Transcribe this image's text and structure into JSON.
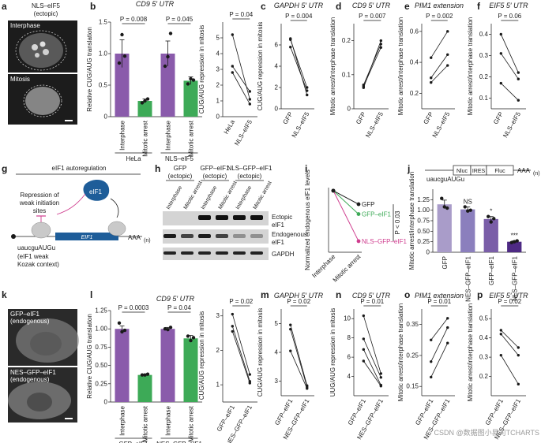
{
  "panels": {
    "a": {
      "label": "a",
      "title": "NLS–eIF5",
      "subtitle": "(ectopic)",
      "image_labels": [
        "Interphase",
        "Mitosis"
      ]
    },
    "g": {
      "label": "g",
      "title": "eIF1 autoregulation",
      "repression_text": [
        "Repression of",
        "weak initiation",
        "sites"
      ],
      "protein": "eIF1",
      "gene": "EIF1",
      "polya": "AAA",
      "polya_sub": "(n)",
      "kozak_seq": "uaucguAUGu",
      "kozak_note": [
        "(eIF1 weak",
        "Kozak context)"
      ]
    },
    "h": {
      "label": "h",
      "groups": [
        {
          "name": [
            "GFP",
            "(ectopic)"
          ]
        },
        {
          "name": [
            "GFP–eIF1",
            "(ectopic)"
          ]
        },
        {
          "name": [
            "NLS–GFP–eIF1",
            "(ectopic)"
          ]
        }
      ],
      "lane_labels": [
        "Interphase",
        "Mitotic arrest",
        "Interphase",
        "Mitotic arrest",
        "Interphase",
        "Mitotic arrest"
      ],
      "blot_labels": [
        [
          "Ectopic",
          "eIF1"
        ],
        [
          "Endogenous",
          "eIF1"
        ],
        [
          "GAPDH"
        ]
      ]
    },
    "k": {
      "label": "k",
      "image_labels": [
        [
          "GFP–eIF1",
          "(endogenous)"
        ],
        [
          "NES–GFP–eIF1",
          "(endogenous)"
        ]
      ]
    },
    "j_construct": {
      "parts": [
        "Nluc",
        "IRES",
        "Fluc"
      ],
      "polya": "AAA",
      "polya_sub": "(n)",
      "seq": "uaucguAUGu"
    },
    "watermark": "CSDN @数据图小易司TCHARTS"
  },
  "chart_data": [
    {
      "panel": "b",
      "type": "bar",
      "title": "CD9 5′ UTR",
      "ylabel": "Relative CUG/AUG translation",
      "ylim": [
        0,
        1.5
      ],
      "yticks": [
        "0",
        "0.5",
        "1.0",
        "1.5"
      ],
      "categories": [
        "Interphase",
        "Mitotic arrest",
        "Interphase",
        "Mitotic arrest"
      ],
      "groups": [
        "HeLa",
        "NLS–eIF5"
      ],
      "values": [
        1.0,
        0.25,
        1.0,
        0.57
      ],
      "errors": [
        0.22,
        0.03,
        0.2,
        0.06
      ],
      "points": [
        [
          0.85,
          1.3,
          0.96
        ],
        [
          0.22,
          0.25,
          0.28
        ],
        [
          0.8,
          0.95,
          1.32
        ],
        [
          0.52,
          0.6,
          0.58
        ]
      ],
      "colors": [
        "#8a5bab",
        "#3daa57",
        "#8a5bab",
        "#3daa57"
      ],
      "pvalues": [
        "P = 0.008",
        "P = 0.045"
      ]
    },
    {
      "panel": "b2",
      "type": "line",
      "ylabel": "CUG/AUG repression in mitosis",
      "ylim": [
        0,
        6
      ],
      "yticks": [
        "0",
        "1",
        "2",
        "3",
        "4",
        "5"
      ],
      "categories": [
        "HeLa",
        "NLS–eIF5"
      ],
      "series": [
        [
          5.2,
          1.1
        ],
        [
          3.2,
          1.6
        ],
        [
          2.8,
          0.8
        ]
      ],
      "pvalue": "P = 0.04"
    },
    {
      "panel": "c",
      "type": "line",
      "title": "GAPDH 5′ UTR",
      "ylabel": "CUG/AUG repression in mitosis",
      "ylim": [
        0,
        8
      ],
      "yticks": [
        "0",
        "2",
        "4",
        "6"
      ],
      "categories": [
        "GFP",
        "NLS–eIF5"
      ],
      "series": [
        [
          6.6,
          1.3
        ],
        [
          5.8,
          1.7
        ],
        [
          6.5,
          2.0
        ]
      ],
      "pvalue": "P = 0.004"
    },
    {
      "panel": "d",
      "type": "line",
      "title": "CD9 5′ UTR",
      "ylabel": "Mitotic arrest/interphase translation",
      "ylim": [
        0,
        0.25
      ],
      "yticks": [
        "0",
        "0.1",
        "0.2"
      ],
      "categories": [
        "GFP",
        "NLS–eIF5"
      ],
      "series": [
        [
          0.062,
          0.2
        ],
        [
          0.066,
          0.18
        ],
        [
          0.07,
          0.19
        ]
      ],
      "pvalue": "P = 0.007"
    },
    {
      "panel": "e",
      "type": "line",
      "title": "PIM1 extension",
      "ylabel": "Mitotic arrest/interphase translation",
      "ylim": [
        0.1,
        0.65
      ],
      "yticks": [
        "0.2",
        "0.4",
        "0.6"
      ],
      "categories": [
        "GFP",
        "NLS–eIF5"
      ],
      "series": [
        [
          0.43,
          0.6
        ],
        [
          0.3,
          0.45
        ],
        [
          0.27,
          0.38
        ]
      ],
      "pvalue": "P = 0.002"
    },
    {
      "panel": "f",
      "type": "line",
      "title": "EIF5 5′ UTR",
      "ylabel": "Mitotic arrest/interphase translation",
      "ylim": [
        0.05,
        0.45
      ],
      "yticks": [
        "0.1",
        "0.2",
        "0.3",
        "0.4"
      ],
      "categories": [
        "GFP",
        "NLS–eIF5"
      ],
      "series": [
        [
          0.4,
          0.22
        ],
        [
          0.31,
          0.19
        ],
        [
          0.17,
          0.09
        ]
      ],
      "pvalue": "P = 0.06"
    },
    {
      "panel": "i",
      "type": "line",
      "ylabel": "Normalized endogenous eIF1 levels",
      "ylim": [
        0,
        1.05
      ],
      "categories": [
        "Interphase",
        "Mitotic arrest"
      ],
      "series": [
        {
          "name": "GFP",
          "values": [
            1.0,
            0.78
          ],
          "color": "#1a1a1a"
        },
        {
          "name": "GFP–eIF1",
          "values": [
            1.0,
            0.62
          ],
          "color": "#3daa57"
        },
        {
          "name": "NLS–GFP–eIF1",
          "values": [
            1.0,
            0.18
          ],
          "color": "#cf3c8e"
        }
      ],
      "pvalue": "P < 0.03"
    },
    {
      "panel": "j",
      "type": "bar",
      "ylabel": "Mitotic arrest/interphase translation",
      "ylim": [
        0,
        1.5
      ],
      "yticks": [
        "0",
        "0.25",
        "0.50",
        "0.75",
        "1.00",
        "1.25"
      ],
      "categories": [
        "GFP",
        "NES–GFP–eIF1",
        "GFP–eIF1",
        "NLS–GFP–eIF1"
      ],
      "values": [
        1.14,
        1.02,
        0.79,
        0.25
      ],
      "errors": [
        0.1,
        0.06,
        0.06,
        0.02
      ],
      "points": [
        [
          1.28,
          1.08,
          1.05
        ],
        [
          1.08,
          0.98,
          1.0
        ],
        [
          0.85,
          0.72,
          0.8
        ],
        [
          0.23,
          0.25,
          0.27
        ]
      ],
      "colors": [
        "#a99cc9",
        "#8b7fbd",
        "#7a5ea8",
        "#4e2a84"
      ],
      "annotations": [
        "",
        "NS",
        "*",
        "***"
      ]
    },
    {
      "panel": "l",
      "type": "bar",
      "title": "CD9 5′ UTR",
      "ylabel": "Relative CUG/AUG translation",
      "ylim": [
        0,
        1.25
      ],
      "yticks": [
        "0",
        "0.25",
        "0.50",
        "0.75",
        "1.00",
        "1.25"
      ],
      "categories": [
        "Interphase",
        "Mitotic arrest",
        "Interphase",
        "Mitotic arrest"
      ],
      "groups": [
        "GFP–eIF1",
        "NES–GFP–eIF1"
      ],
      "values": [
        1.0,
        0.37,
        1.0,
        0.87
      ],
      "errors": [
        0.04,
        0.01,
        0.02,
        0.04
      ],
      "points": [
        [
          1.08,
          0.96,
          0.98
        ],
        [
          0.37,
          0.37,
          0.38
        ],
        [
          1.0,
          0.99,
          1.02
        ],
        [
          0.9,
          0.84,
          0.88
        ]
      ],
      "colors": [
        "#8a5bab",
        "#3daa57",
        "#8a5bab",
        "#3daa57"
      ],
      "pvalues": [
        "P = 0.0003",
        "P = 0.04"
      ]
    },
    {
      "panel": "l2",
      "type": "line",
      "ylabel": "CUG/AUG repression in mitosis",
      "ylim": [
        0.5,
        3.2
      ],
      "yticks": [
        "1",
        "2",
        "3"
      ],
      "categories": [
        "GFP–eIF1",
        "NES–GFP–eIF1"
      ],
      "series": [
        [
          3.05,
          1.3
        ],
        [
          2.7,
          1.1
        ],
        [
          2.55,
          1.05
        ]
      ],
      "pvalue": "P = 0.02"
    },
    {
      "panel": "m",
      "type": "line",
      "title": "GAPDH 5′ UTR",
      "ylabel": "CUG/AUG repression in mitosis",
      "ylim": [
        2.5,
        5.5
      ],
      "yticks": [
        "3",
        "4",
        "5"
      ],
      "categories": [
        "GFP–eIF1",
        "NES–GFP–eIF1"
      ],
      "series": [
        [
          4.95,
          2.85
        ],
        [
          4.8,
          2.8
        ],
        [
          4.05,
          2.75
        ]
      ],
      "pvalue": "P = 0.02"
    },
    {
      "panel": "n",
      "type": "line",
      "title": "CD9 5′ UTR",
      "ylabel": "UUG/AUG repression in mitosis",
      "ylim": [
        2,
        11
      ],
      "yticks": [
        "4",
        "6",
        "8",
        "10"
      ],
      "categories": [
        "GFP–eIF1",
        "NES–GFP–eIF1"
      ],
      "series": [
        [
          10.3,
          4.3
        ],
        [
          7.9,
          3.9
        ],
        [
          6.8,
          3.1
        ],
        [
          5.6,
          3.0
        ]
      ],
      "pvalue": "P = 0.01"
    },
    {
      "panel": "o",
      "type": "line",
      "title": "PIM1 extension",
      "ylabel": "Mitotic arrest/interphase translation",
      "ylim": [
        0.12,
        0.4
      ],
      "yticks": [
        "0.15",
        "0.25",
        "0.35"
      ],
      "categories": [
        "GFP–eIF1",
        "NES–GFP–eIF1"
      ],
      "series": [
        [
          0.3,
          0.37
        ],
        [
          0.23,
          0.34
        ],
        [
          0.18,
          0.29
        ]
      ],
      "pvalue": "P = 0.01"
    },
    {
      "panel": "p",
      "type": "line",
      "title": "EIF5 5′ UTR",
      "ylabel": "Mitotic arrest/interphase translation",
      "ylim": [
        0.1,
        0.55
      ],
      "yticks": [
        "0.2",
        "0.3",
        "0.4",
        "0.5"
      ],
      "categories": [
        "GFP–eIF1",
        "NES–GFP–eIF1"
      ],
      "series": [
        [
          0.44,
          0.35
        ],
        [
          0.42,
          0.31
        ],
        [
          0.31,
          0.16
        ]
      ],
      "pvalue": "P = 0.02"
    }
  ]
}
